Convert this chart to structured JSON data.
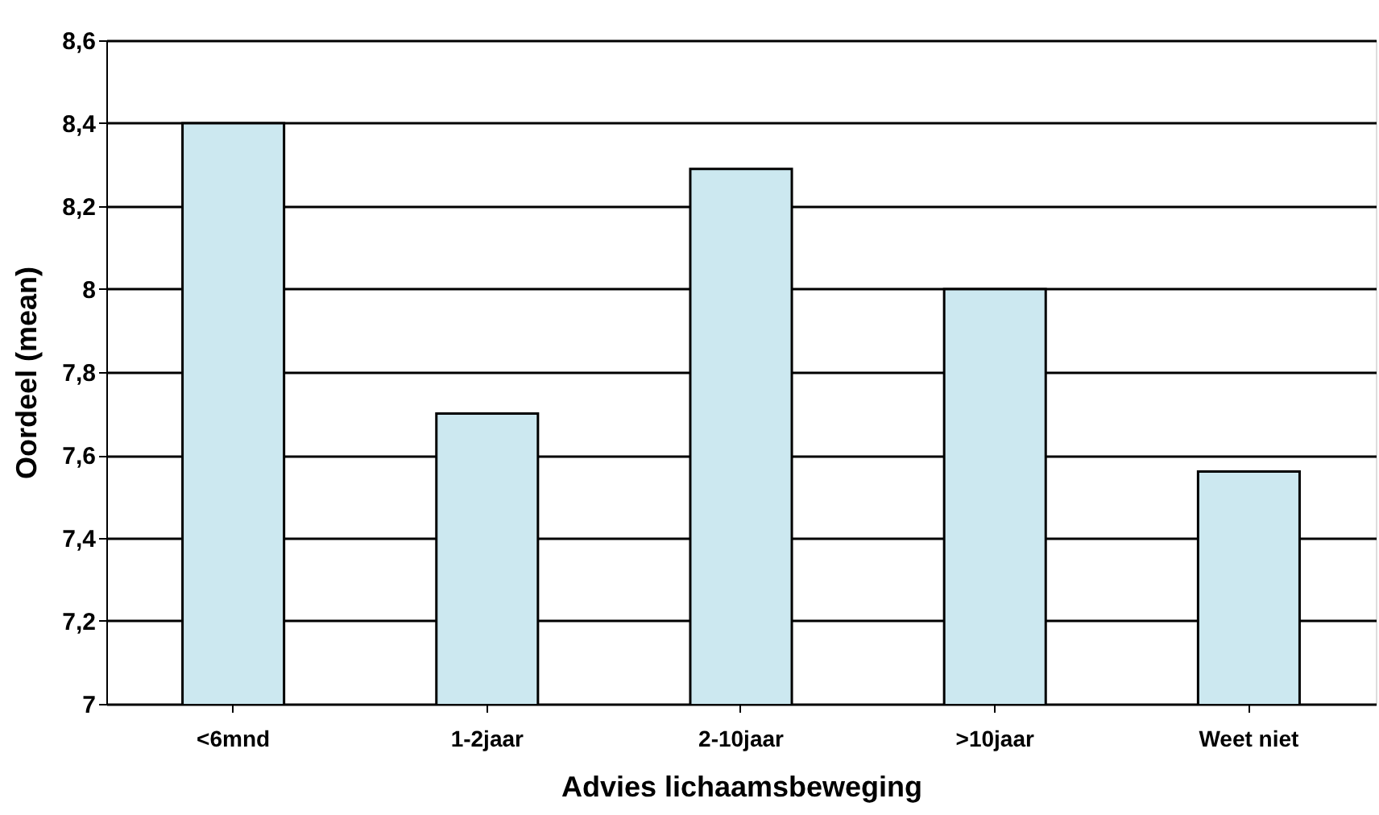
{
  "chart_data": {
    "type": "bar",
    "xlabel": "Advies lichaamsbeweging",
    "ylabel": "Oordeel (mean)",
    "categories": [
      "<6mnd",
      "1-2jaar",
      "2-10jaar",
      ">10jaar",
      "Weet niet"
    ],
    "values": [
      8.4,
      7.7,
      8.29,
      8.0,
      7.56
    ],
    "color": "#cce8f0",
    "ylim": [
      7,
      8.6
    ],
    "yticks": [
      7,
      {
        "value": 7.2,
        "label": "7,2"
      },
      {
        "value": 7.4,
        "label": "7,4"
      },
      {
        "value": 7.6,
        "label": "7,6"
      },
      {
        "value": 7.8,
        "label": "7,8"
      },
      8,
      {
        "value": 8.2,
        "label": "8,2"
      },
      {
        "value": 8.4,
        "label": "8,4"
      },
      {
        "value": 8.6,
        "label": "8,6"
      }
    ],
    "grid": "y"
  }
}
